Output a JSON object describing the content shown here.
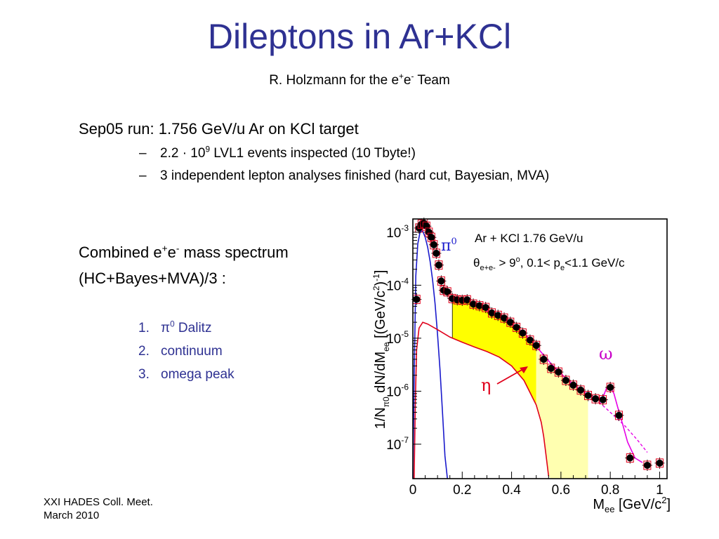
{
  "slide": {
    "title": "Dileptons in Ar+KCl",
    "author": {
      "pre": "R. Holzmann  for  the e",
      "sup1": "+",
      "mid": "e",
      "sup2": "-",
      "post": " Team"
    },
    "bullet": {
      "label": "Sep05 run:   1.756 GeV/u Ar on KCl target",
      "sub1": {
        "pre": "2.2 · 10",
        "sup": "9",
        "post": " LVL1 events inspected  (10 Tbyte!)"
      },
      "sub2": "3 independent lepton analyses finished  (hard cut, Bayesian, MVA)",
      "dash": "–"
    },
    "combined": {
      "pre": "Combined e",
      "sup1": "+",
      "mid": "e",
      "sup2": "-",
      "post": " mass spectrum",
      "line2": "(HC+Bayes+MVA)/3 :"
    },
    "list": [
      {
        "num": "1.",
        "label_pre": "π",
        "label_sup": "0",
        "label_post": " Dalitz"
      },
      {
        "num": "2.",
        "label": "continuum"
      },
      {
        "num": "3.",
        "label": "omega peak"
      }
    ],
    "footer": [
      "XXI HADES Coll. Meet.",
      "March 2010"
    ]
  },
  "chart_data": {
    "type": "scatter",
    "y_log": true,
    "xlim": [
      0,
      1.03
    ],
    "ylim_log10": [
      -7.65,
      -2.75
    ],
    "x_ticks": [
      "0",
      "0.2",
      "0.4",
      "0.6",
      "0.8",
      "1"
    ],
    "x_tick_values": [
      0,
      0.2,
      0.4,
      0.6,
      0.8,
      1.0
    ],
    "y_tick_exponents": [
      -3,
      -4,
      -5,
      -6,
      -7
    ],
    "y_tick_base": "10",
    "xlabel": {
      "main": "M",
      "sub": "ee",
      "rest": " [GeV/c",
      "sup": "2",
      "end": "]"
    },
    "ylabel": {
      "a": "1/N",
      "a_sub": "π0",
      "b": " dN/dM",
      "b_sub": "ee",
      "c": "  [(GeV/c",
      "c_sup": "2",
      "d": ")",
      "d_sup": "-1",
      "e": "]"
    },
    "annotation_line1": "Ar + KCl  1.76 GeV/u",
    "annotation_line2": {
      "theta": "θ",
      "sub": "e+e-",
      "rest1": " > 9",
      "deg": "o",
      "rest2": ",  0.1< p",
      "psub": "e",
      "rest3": "<1.1 GeV/c"
    },
    "labels": {
      "pi0": "π",
      "pi0_sup": "0",
      "eta": "η",
      "omega": "ω"
    },
    "colors": {
      "data": "#000000",
      "pi0": "#1a1acc",
      "eta": "#e0001b",
      "fit": "#e600e6",
      "fill": "#ffff00",
      "fill_light": "#ffffb0",
      "sys": "#e0001b"
    },
    "series": [
      {
        "name": "data",
        "points": [
          [
            0.015,
            5.4e-05
          ],
          [
            0.025,
            0.0012
          ],
          [
            0.035,
            0.00142
          ],
          [
            0.045,
            0.00148
          ],
          [
            0.055,
            0.0013
          ],
          [
            0.065,
            0.001
          ],
          [
            0.075,
            0.0008
          ],
          [
            0.085,
            0.00058
          ],
          [
            0.095,
            0.0004
          ],
          [
            0.105,
            0.00024
          ],
          [
            0.115,
            0.00012
          ],
          [
            0.125,
            8e-05
          ],
          [
            0.14,
            7.5e-05
          ],
          [
            0.16,
            5.6e-05
          ],
          [
            0.18,
            5.3e-05
          ],
          [
            0.2,
            5.2e-05
          ],
          [
            0.22,
            5.3e-05
          ],
          [
            0.245,
            4.4e-05
          ],
          [
            0.27,
            4.1e-05
          ],
          [
            0.295,
            3.8e-05
          ],
          [
            0.32,
            3e-05
          ],
          [
            0.345,
            2.7e-05
          ],
          [
            0.37,
            2.4e-05
          ],
          [
            0.395,
            2e-05
          ],
          [
            0.42,
            1.6e-05
          ],
          [
            0.445,
            1.25e-05
          ],
          [
            0.475,
            9.2e-06
          ],
          [
            0.5,
            7.3e-06
          ],
          [
            0.53,
            4e-06
          ],
          [
            0.56,
            2.7e-06
          ],
          [
            0.59,
            2.3e-06
          ],
          [
            0.62,
            1.6e-06
          ],
          [
            0.65,
            1.3e-06
          ],
          [
            0.68,
            1.05e-06
          ],
          [
            0.71,
            8.3e-07
          ],
          [
            0.74,
            7.2e-07
          ],
          [
            0.77,
            6.9e-07
          ],
          [
            0.8,
            1.18e-06
          ],
          [
            0.835,
            3.5e-07
          ],
          [
            0.88,
            5.5e-08
          ],
          [
            0.95,
            4e-08
          ],
          [
            1.0,
            4.4e-08
          ]
        ]
      },
      {
        "name": "pi0_dalitz",
        "curve": [
          [
            0.0,
            1e-09
          ],
          [
            0.006,
            3e-06
          ],
          [
            0.012,
            0.00015
          ],
          [
            0.02,
            0.0006
          ],
          [
            0.03,
            0.00105
          ],
          [
            0.04,
            0.00105
          ],
          [
            0.05,
            0.0008
          ],
          [
            0.06,
            0.00052
          ],
          [
            0.07,
            0.00028
          ],
          [
            0.08,
            0.000125
          ],
          [
            0.09,
            4.5e-05
          ],
          [
            0.1,
            1.2e-05
          ],
          [
            0.11,
            2.5e-06
          ],
          [
            0.12,
            4e-07
          ],
          [
            0.13,
            6e-08
          ],
          [
            0.14,
            1e-08
          ]
        ]
      },
      {
        "name": "eta_dalitz",
        "curve": [
          [
            0.005,
            1e-09
          ],
          [
            0.01,
            6e-07
          ],
          [
            0.015,
            6e-06
          ],
          [
            0.025,
            1.55e-05
          ],
          [
            0.04,
            2e-05
          ],
          [
            0.06,
            1.85e-05
          ],
          [
            0.1,
            1.45e-05
          ],
          [
            0.15,
            1.05e-05
          ],
          [
            0.2,
            8.4e-06
          ],
          [
            0.25,
            6.8e-06
          ],
          [
            0.3,
            5.6e-06
          ],
          [
            0.35,
            4.4e-06
          ],
          [
            0.4,
            3e-06
          ],
          [
            0.45,
            1.6e-06
          ],
          [
            0.5,
            5.5e-07
          ],
          [
            0.52,
            2.6e-07
          ],
          [
            0.53,
            1.4e-07
          ],
          [
            0.54,
            6e-08
          ],
          [
            0.55,
            2.5e-08
          ]
        ]
      },
      {
        "name": "fit",
        "curve": [
          [
            0.28,
            3.6e-05
          ],
          [
            0.35,
            2.6e-05
          ],
          [
            0.45,
            1.25e-05
          ],
          [
            0.5,
            7e-06
          ],
          [
            0.56,
            3.3e-06
          ],
          [
            0.62,
            1.75e-06
          ],
          [
            0.68,
            1.05e-06
          ],
          [
            0.74,
            7.3e-07
          ],
          [
            0.77,
            7.6e-07
          ],
          [
            0.785,
            1.15e-06
          ],
          [
            0.8,
            1.25e-06
          ],
          [
            0.815,
            9e-07
          ],
          [
            0.83,
            5e-07
          ],
          [
            0.85,
            2.4e-07
          ],
          [
            0.87,
            1.1e-07
          ],
          [
            0.9,
            5.5e-08
          ],
          [
            0.93,
            4.5e-08
          ]
        ]
      },
      {
        "name": "continuum_extrapolation",
        "curve": [
          [
            0.74,
            7.2e-07
          ],
          [
            0.8,
            4e-07
          ],
          [
            0.86,
            2.2e-07
          ],
          [
            0.91,
            1.2e-07
          ],
          [
            0.95,
            7e-08
          ]
        ]
      }
    ]
  }
}
